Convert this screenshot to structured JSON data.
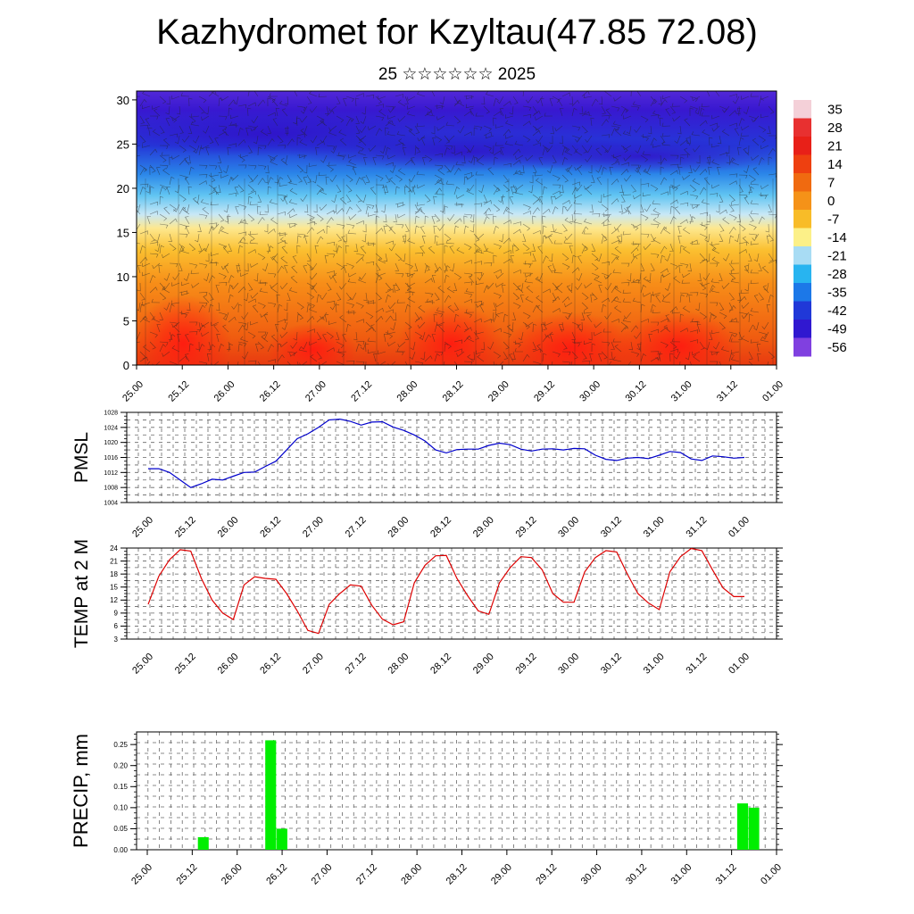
{
  "header": {
    "title": "Kazhydromet for Kzyltau(47.85 72.08)",
    "subtitle": "25 ☆☆☆☆☆☆ 2025"
  },
  "colors": {
    "pmsl_line": "#0000cc",
    "temp_line": "#dd0000",
    "precip_bar": "#00ee00",
    "grid": "#666666"
  },
  "chart_data": [
    {
      "id": "cross_section",
      "type": "heatmap",
      "title": "",
      "xlabel": "",
      "ylabel": "",
      "ylim": [
        0,
        31
      ],
      "yticks": [
        0,
        5,
        10,
        15,
        20,
        25,
        30
      ],
      "xticks": [
        "25.00",
        "25.12",
        "26.00",
        "26.12",
        "27.00",
        "27.12",
        "28.00",
        "28.12",
        "29.00",
        "29.12",
        "30.00",
        "30.12",
        "31.00",
        "31.12",
        "01.00"
      ],
      "colorbar": {
        "labels": [
          "35",
          "28",
          "21",
          "14",
          "7",
          "0",
          "-7",
          "-14",
          "-21",
          "-28",
          "-35",
          "-42",
          "-49",
          "-56"
        ],
        "colors": [
          "#f4d0d8",
          "#e83030",
          "#e82018",
          "#ee4010",
          "#f06a10",
          "#f59218",
          "#f8bc28",
          "#fcf088",
          "#a8dcf4",
          "#28b4f0",
          "#1c78e8",
          "#2038d8",
          "#3018d0",
          "#8040e0"
        ]
      },
      "overlay": "wind barbs"
    },
    {
      "id": "pmsl",
      "type": "line",
      "ylabel": "PMSL",
      "ylim": [
        1004,
        1028
      ],
      "yticks": [
        1004,
        1008,
        1012,
        1016,
        1020,
        1024,
        1028
      ],
      "xticks": [
        "25.00",
        "25.12",
        "26.00",
        "26.12",
        "27.00",
        "27.12",
        "28.00",
        "28.12",
        "29.00",
        "29.12",
        "30.00",
        "30.12",
        "31.00",
        "31.12",
        "01.00"
      ],
      "series": [
        {
          "values": [
            1013.0,
            1013.0,
            1012.0,
            1010.0,
            1008.0,
            1009.0,
            1010.2,
            1010.0,
            1011.0,
            1012.0,
            1012.1,
            1013.6,
            1015.0,
            1018.0,
            1021.0,
            1022.3,
            1024.0,
            1026.0,
            1026.2,
            1025.6,
            1024.6,
            1025.4,
            1025.5,
            1024.1,
            1023.2,
            1022.0,
            1020.4,
            1018.0,
            1017.2,
            1018.1,
            1018.2,
            1018.2,
            1019.2,
            1019.8,
            1019.4,
            1018.2,
            1017.7,
            1018.2,
            1018.3,
            1018.0,
            1018.4,
            1018.3,
            1016.6,
            1015.5,
            1015.2,
            1015.8,
            1016.0,
            1015.7,
            1016.6,
            1017.6,
            1017.3,
            1015.6,
            1015.2,
            1016.4,
            1016.2,
            1015.8,
            1016.0
          ]
        }
      ]
    },
    {
      "id": "temp",
      "type": "line",
      "ylabel": "TEMP at 2 M",
      "ylim": [
        3,
        24
      ],
      "yticks": [
        3,
        6,
        9,
        12,
        15,
        18,
        21,
        24
      ],
      "xticks": [
        "25.00",
        "25.12",
        "26.00",
        "26.12",
        "27.00",
        "27.12",
        "28.00",
        "28.12",
        "29.00",
        "29.12",
        "30.00",
        "30.12",
        "31.00",
        "31.12",
        "01.00"
      ],
      "series": [
        {
          "values": [
            11,
            17.5,
            21.3,
            23.6,
            23.3,
            17,
            12,
            9,
            7.5,
            15.5,
            17.4,
            17,
            16.8,
            13.5,
            9.5,
            5,
            4.3,
            11,
            13.5,
            15.5,
            15.2,
            10.8,
            7.6,
            6.3,
            7,
            16,
            20,
            22.2,
            22.3,
            17,
            13,
            9.5,
            8.7,
            16,
            19.5,
            22,
            21.8,
            19,
            13.5,
            11.5,
            11.5,
            18.5,
            21.8,
            23.4,
            23.1,
            18,
            13.5,
            11.3,
            9.8,
            18.5,
            22,
            23.9,
            23.4,
            19,
            14.8,
            12.8,
            12.8
          ]
        }
      ]
    },
    {
      "id": "precip",
      "type": "bar",
      "ylabel": "PRECIP, mm",
      "ylim": [
        0,
        0.28
      ],
      "yticks": [
        "0.00",
        "0.05",
        "0.10",
        "0.15",
        "0.20",
        "0.25"
      ],
      "xticks": [
        "25.00",
        "25.12",
        "26.00",
        "26.12",
        "27.00",
        "27.12",
        "28.00",
        "28.12",
        "29.00",
        "29.12",
        "30.00",
        "30.12",
        "31.00",
        "31.12",
        "01.00"
      ],
      "bars": [
        {
          "step": 5,
          "value": 0.03
        },
        {
          "step": 11,
          "value": 0.26
        },
        {
          "step": 12,
          "value": 0.05
        },
        {
          "step": 53,
          "value": 0.11
        },
        {
          "step": 54,
          "value": 0.1
        }
      ]
    }
  ]
}
